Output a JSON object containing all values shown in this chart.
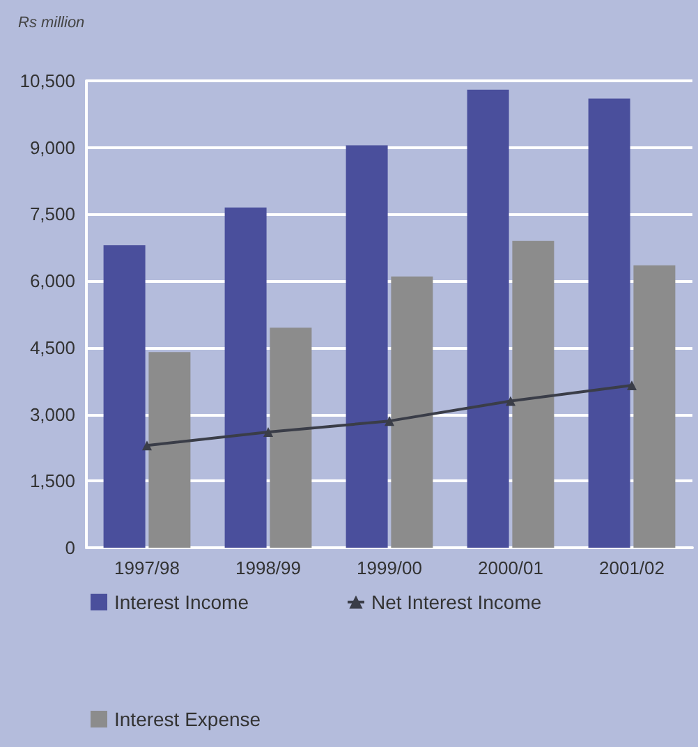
{
  "chart_data": {
    "type": "bar",
    "ylabel": "Rs million",
    "categories": [
      "1997/98",
      "1998/99",
      "1999/00",
      "2000/01",
      "2001/02"
    ],
    "series": [
      {
        "name": "Interest Income",
        "color": "#4a4f9c",
        "values": [
          6800,
          7650,
          9050,
          10300,
          10100
        ]
      },
      {
        "name": "Net Interest Income",
        "type": "line",
        "color": "#3a3d48",
        "values": [
          2300,
          2600,
          2850,
          3300,
          3650
        ]
      },
      {
        "name": "Interest Expense",
        "color": "#8c8c8c",
        "values": [
          4400,
          4950,
          6100,
          6900,
          6350
        ]
      }
    ],
    "ylim": [
      0,
      10500
    ],
    "yticks": [
      0,
      {
        "value": 1500,
        "label": "1,500"
      },
      {
        "value": 3000,
        "label": "3,000"
      },
      {
        "value": 4500,
        "label": "4,500"
      },
      {
        "value": 6000,
        "label": "6,000"
      },
      {
        "value": 7500,
        "label": "7,500"
      },
      {
        "value": 9000,
        "label": "9,000"
      },
      {
        "value": 10500,
        "label": "10,500"
      }
    ],
    "grid": "y",
    "legend": "bottom",
    "marker": "triangle",
    "line_style": "solid"
  }
}
